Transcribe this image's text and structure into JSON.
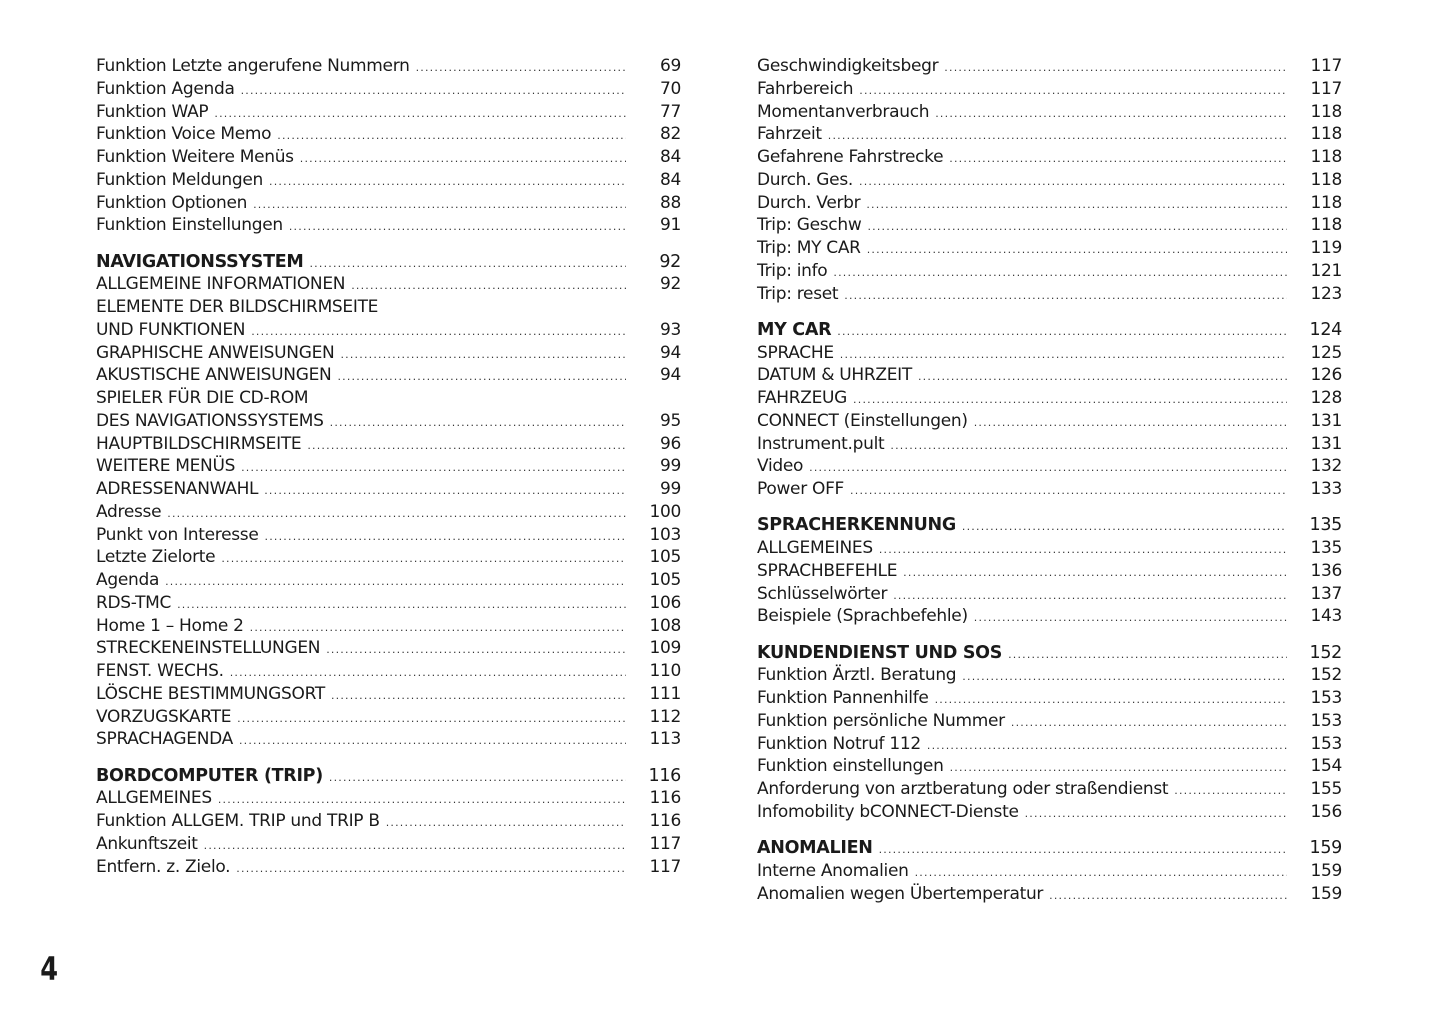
{
  "page_number": "4",
  "left_column": [
    {
      "title": "Funktion Letzte angerufene Nummern",
      "page": "69"
    },
    {
      "title": "Funktion Agenda",
      "page": "70"
    },
    {
      "title": "Funktion WAP",
      "page": "77"
    },
    {
      "title": "Funktion Voice Memo",
      "page": "82"
    },
    {
      "title": "Funktion Weitere Menüs",
      "page": "84"
    },
    {
      "title": "Funktion Meldungen",
      "page": "84"
    },
    {
      "title": "Funktion Optionen",
      "page": "88"
    },
    {
      "title": "Funktion Einstellungen",
      "page": "91"
    },
    {
      "title": "NAVIGATIONSSYSTEM",
      "page": "92",
      "heading": true
    },
    {
      "title": "ALLGEMEINE INFORMATIONEN",
      "page": "92"
    },
    {
      "title": "ELEMENTE DER BILDSCHIRMSEITE"
    },
    {
      "title": "UND FUNKTIONEN",
      "page": "93"
    },
    {
      "title": "GRAPHISCHE ANWEISUNGEN",
      "page": "94"
    },
    {
      "title": "AKUSTISCHE ANWEISUNGEN",
      "page": "94"
    },
    {
      "title": "SPIELER FÜR DIE CD-ROM"
    },
    {
      "title": "DES NAVIGATIONSSYSTEMS",
      "page": "95"
    },
    {
      "title": "HAUPTBILDSCHIRMSEITE",
      "page": "96"
    },
    {
      "title": "WEITERE MENÜS",
      "page": "99"
    },
    {
      "title": "ADRESSENANWAHL",
      "page": "99"
    },
    {
      "title": "Adresse",
      "page": "100"
    },
    {
      "title": "Punkt von Interesse",
      "page": "103"
    },
    {
      "title": "Letzte Zielorte",
      "page": "105"
    },
    {
      "title": "Agenda",
      "page": "105"
    },
    {
      "title": "RDS-TMC",
      "page": "106"
    },
    {
      "title": "Home 1 – Home 2",
      "page": "108"
    },
    {
      "title": "STRECKENEINSTELLUNGEN",
      "page": "109"
    },
    {
      "title": "FENST. WECHS.",
      "page": "110"
    },
    {
      "title": "LÖSCHE BESTIMMUNGSORT",
      "page": "111"
    },
    {
      "title": "VORZUGSKARTE",
      "page": "112"
    },
    {
      "title": "SPRACHAGENDA",
      "page": "113"
    },
    {
      "title": "BORDCOMPUTER (TRIP)",
      "page": "116",
      "heading": true
    },
    {
      "title": "ALLGEMEINES",
      "page": "116"
    },
    {
      "title": "Funktion ALLGEM. TRIP und TRIP B",
      "page": "116"
    },
    {
      "title": "Ankunftszeit",
      "page": "117"
    },
    {
      "title": "Entfern. z. Zielo.",
      "page": "117"
    }
  ],
  "right_column": [
    {
      "title": "Geschwindigkeitsbegr",
      "page": "117"
    },
    {
      "title": "Fahrbereich",
      "page": "117"
    },
    {
      "title": "Momentanverbrauch",
      "page": "118"
    },
    {
      "title": "Fahrzeit",
      "page": "118"
    },
    {
      "title": "Gefahrene Fahrstrecke",
      "page": "118"
    },
    {
      "title": "Durch. Ges.",
      "page": "118"
    },
    {
      "title": "Durch. Verbr",
      "page": "118"
    },
    {
      "title": "Trip: Geschw",
      "page": "118"
    },
    {
      "title": "Trip: MY CAR",
      "page": "119"
    },
    {
      "title": "Trip: info",
      "page": "121"
    },
    {
      "title": "Trip: reset",
      "page": "123"
    },
    {
      "title": "MY CAR",
      "page": "124",
      "heading": true
    },
    {
      "title": "SPRACHE",
      "page": "125"
    },
    {
      "title": "DATUM & UHRZEIT",
      "page": "126"
    },
    {
      "title": "FAHRZEUG",
      "page": "128"
    },
    {
      "title": "CONNECT (Einstellungen)",
      "page": "131"
    },
    {
      "title": "Instrument.pult",
      "page": "131"
    },
    {
      "title": "Video",
      "page": "132"
    },
    {
      "title": "Power OFF",
      "page": "133"
    },
    {
      "title": "SPRACHERKENNUNG",
      "page": "135",
      "heading": true
    },
    {
      "title": "ALLGEMEINES",
      "page": "135"
    },
    {
      "title": "SPRACHBEFEHLE",
      "page": "136"
    },
    {
      "title": "Schlüsselwörter",
      "page": "137"
    },
    {
      "title": "Beispiele (Sprachbefehle)",
      "page": "143"
    },
    {
      "title": "KUNDENDIENST UND SOS",
      "page": "152",
      "heading": true
    },
    {
      "title": "Funktion Ärztl. Beratung",
      "page": "152"
    },
    {
      "title": "Funktion Pannenhilfe",
      "page": "153"
    },
    {
      "title": "Funktion persönliche Nummer",
      "page": "153"
    },
    {
      "title": "Funktion Notruf 112",
      "page": "153"
    },
    {
      "title": "Funktion einstellungen",
      "page": "154"
    },
    {
      "title": "Anforderung von arztberatung oder straßendienst",
      "page": "155"
    },
    {
      "title": "Infomobility bCONNECT-Dienste",
      "page": "156"
    },
    {
      "title": "ANOMALIEN",
      "page": "159",
      "heading": true
    },
    {
      "title": "Interne Anomalien",
      "page": "159"
    },
    {
      "title": "Anomalien wegen Übertemperatur",
      "page": "159"
    }
  ]
}
